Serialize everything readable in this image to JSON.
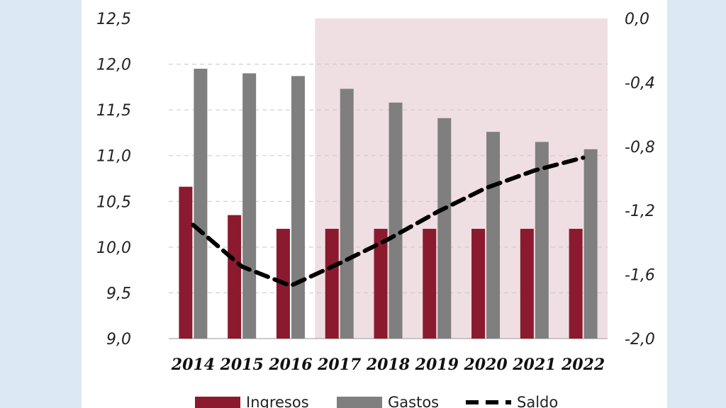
{
  "chart_data": {
    "type": "bar",
    "categories": [
      "2014",
      "2015",
      "2016",
      "2017",
      "2018",
      "2019",
      "2020",
      "2021",
      "2022"
    ],
    "series": [
      {
        "name": "Ingresos",
        "type": "bar",
        "axis": "left",
        "color": "#8b1a2e",
        "values": [
          10.66,
          10.35,
          10.2,
          10.2,
          10.2,
          10.2,
          10.2,
          10.2,
          10.2
        ]
      },
      {
        "name": "Gastos",
        "type": "bar",
        "axis": "left",
        "color": "#7f7f7f",
        "values": [
          11.95,
          11.9,
          11.87,
          11.73,
          11.58,
          11.41,
          11.26,
          11.15,
          11.07
        ]
      },
      {
        "name": "Saldo",
        "type": "line",
        "style": "dashed",
        "axis": "right",
        "color": "#000000",
        "values": [
          -1.29,
          -1.55,
          -1.67,
          -1.53,
          -1.38,
          -1.21,
          -1.06,
          -0.95,
          -0.87
        ]
      }
    ],
    "left_axis": {
      "ylim": [
        9.0,
        12.5
      ],
      "ticks": [
        "9,0",
        "9,5",
        "10,0",
        "10,5",
        "11,0",
        "11,5",
        "12,0",
        "12,5"
      ]
    },
    "right_axis": {
      "ylim": [
        -2.0,
        0.0
      ],
      "ticks": [
        "-2,0",
        "-1,6",
        "-1,2",
        "-0,8",
        "-0,4",
        "0,0"
      ]
    },
    "shaded_region": {
      "from": "2017",
      "to": "2022",
      "color": "#f0dfe2"
    },
    "grid": "horizontal dashed",
    "legend": {
      "placement": "bottom",
      "entries": [
        "Ingresos",
        "Gastos",
        "Saldo"
      ]
    },
    "title": "",
    "xlabel": "",
    "ylabel": ""
  }
}
